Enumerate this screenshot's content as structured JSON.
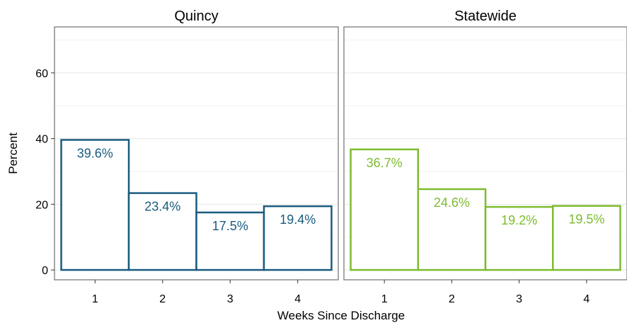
{
  "chart_data": {
    "type": "bar",
    "xlabel": "Weeks Since Discharge",
    "ylabel": "Percent",
    "ylim": [
      -3,
      74
    ],
    "yticks": [
      0,
      20,
      40,
      60
    ],
    "categories": [
      "1",
      "2",
      "3",
      "4"
    ],
    "grid": true,
    "facets": [
      {
        "title": "Quincy",
        "color": "#1a5b7e",
        "values": [
          39.6,
          23.4,
          17.5,
          19.4
        ],
        "labels": [
          "39.6%",
          "23.4%",
          "17.5%",
          "19.4%"
        ]
      },
      {
        "title": "Statewide",
        "color": "#7dbb2e",
        "values": [
          36.7,
          24.6,
          19.2,
          19.5
        ],
        "labels": [
          "36.7%",
          "24.6%",
          "19.2%",
          "19.5%"
        ]
      }
    ]
  }
}
